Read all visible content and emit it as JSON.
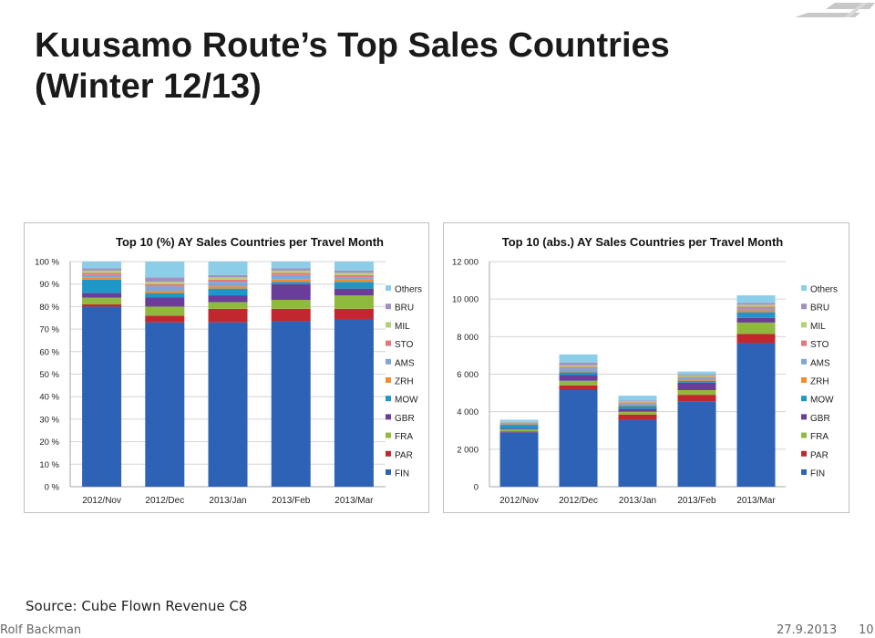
{
  "slide": {
    "title_line1": "Kuusamo Route’s Top Sales Countries",
    "title_line2": "(Winter 12/13)",
    "source": "Source: Cube Flown Revenue C8",
    "author": "Rolf Backman",
    "date": "27.9.2013",
    "page": "10",
    "logo_icon": "airline-logo-icon"
  },
  "colors": {
    "FIN": "#2e62b6",
    "PAR": "#c0282d",
    "FRA": "#8fba3e",
    "GBR": "#6a3d9a",
    "MOW": "#1f97c6",
    "ZRH": "#f28a2e",
    "AMS": "#7fa6d6",
    "STO": "#e0797c",
    "MIL": "#b2d277",
    "BRU": "#a18fc0",
    "Others": "#8ccde8"
  },
  "chart_data": [
    {
      "type": "bar",
      "stacked": true,
      "title": "Top 10 (%) AY Sales Countries per Travel Month",
      "categories": [
        "2012/Nov",
        "2012/Dec",
        "2013/Jan",
        "2013/Feb",
        "2013/Mar"
      ],
      "ylim": [
        0,
        100
      ],
      "yticks": [
        0,
        10,
        20,
        30,
        40,
        50,
        60,
        70,
        80,
        90,
        100
      ],
      "ytick_labels": [
        "0 %",
        "10 %",
        "20 %",
        "30 %",
        "40 %",
        "50 %",
        "60 %",
        "70 %",
        "80 %",
        "90 %",
        "100 %"
      ],
      "grid": true,
      "legend": "right",
      "series": [
        {
          "name": "FIN",
          "values": [
            80,
            73,
            73,
            73.5,
            74.5
          ]
        },
        {
          "name": "PAR",
          "values": [
            1,
            3,
            6,
            5.5,
            4.5
          ]
        },
        {
          "name": "FRA",
          "values": [
            3,
            4,
            3,
            4,
            6
          ]
        },
        {
          "name": "GBR",
          "values": [
            2,
            4,
            3,
            7,
            3
          ]
        },
        {
          "name": "MOW",
          "values": [
            6,
            2,
            3,
            1,
            3
          ]
        },
        {
          "name": "ZRH",
          "values": [
            1,
            1,
            1,
            1,
            1
          ]
        },
        {
          "name": "AMS",
          "values": [
            1,
            2,
            2,
            2,
            1
          ]
        },
        {
          "name": "STO",
          "values": [
            1,
            1,
            1,
            1,
            1
          ]
        },
        {
          "name": "MIL",
          "values": [
            1,
            1,
            1,
            1,
            1
          ]
        },
        {
          "name": "BRU",
          "values": [
            1,
            2,
            1,
            1,
            1
          ]
        },
        {
          "name": "Others",
          "values": [
            3,
            7,
            6,
            3,
            4
          ]
        }
      ]
    },
    {
      "type": "bar",
      "stacked": true,
      "title": "Top 10 (abs.) AY Sales Countries per Travel Month",
      "categories": [
        "2012/Nov",
        "2012/Dec",
        "2013/Jan",
        "2013/Feb",
        "2013/Mar"
      ],
      "ylim": [
        0,
        12000
      ],
      "yticks": [
        0,
        2000,
        4000,
        6000,
        8000,
        10000,
        12000
      ],
      "ytick_labels": [
        "0",
        "2 000",
        "4 000",
        "6 000",
        "8 000",
        "10 000",
        "12 000"
      ],
      "grid": true,
      "legend": "right",
      "series": [
        {
          "name": "FIN",
          "values": [
            2900,
            5150,
            3550,
            4550,
            7650
          ]
        },
        {
          "name": "PAR",
          "values": [
            50,
            250,
            300,
            350,
            500
          ]
        },
        {
          "name": "FRA",
          "values": [
            100,
            250,
            150,
            250,
            600
          ]
        },
        {
          "name": "GBR",
          "values": [
            50,
            300,
            150,
            400,
            250
          ]
        },
        {
          "name": "MOW",
          "values": [
            200,
            150,
            150,
            100,
            300
          ]
        },
        {
          "name": "ZRH",
          "values": [
            30,
            70,
            50,
            60,
            100
          ]
        },
        {
          "name": "AMS",
          "values": [
            40,
            150,
            100,
            100,
            100
          ]
        },
        {
          "name": "STO",
          "values": [
            30,
            80,
            50,
            60,
            100
          ]
        },
        {
          "name": "MIL",
          "values": [
            30,
            70,
            50,
            60,
            100
          ]
        },
        {
          "name": "BRU",
          "values": [
            30,
            150,
            50,
            60,
            100
          ]
        },
        {
          "name": "Others",
          "values": [
            110,
            430,
            250,
            150,
            400
          ]
        }
      ]
    }
  ]
}
